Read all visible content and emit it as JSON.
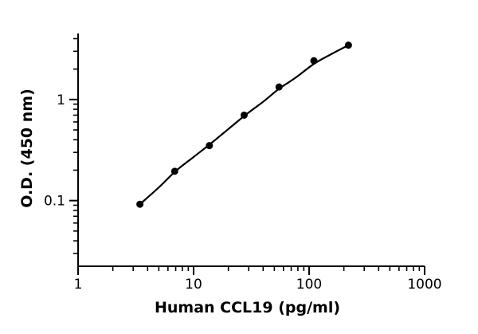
{
  "chart_data": {
    "type": "scatter",
    "title": "",
    "xlabel": "Human CCL19 (pg/ml)",
    "ylabel": "O.D. (450 nm)",
    "x_scale": "log",
    "y_scale": "log",
    "xlim": [
      1,
      1000
    ],
    "ylim": [
      0.025,
      4.5
    ],
    "x_ticks": [
      {
        "value": 1,
        "label": "1"
      },
      {
        "value": 10,
        "label": "10"
      },
      {
        "value": 100,
        "label": "100"
      },
      {
        "value": 1000,
        "label": "1000"
      }
    ],
    "y_ticks": [
      {
        "value": 0.1,
        "label": "0.1"
      },
      {
        "value": 1,
        "label": "1"
      }
    ],
    "grid": false,
    "legend": "none",
    "colors": {
      "points": "#000000",
      "curve": "#000000",
      "axes": "#000000"
    },
    "series": [
      {
        "x": [
          3.43,
          6.86,
          13.7,
          27.4,
          54.9,
          110,
          219
        ],
        "y": [
          0.092,
          0.195,
          0.35,
          0.7,
          1.33,
          2.42,
          3.45
        ]
      }
    ],
    "fit_curve": {
      "x": [
        3.43,
        5,
        7,
        10,
        14,
        20,
        28,
        40,
        55,
        75,
        110,
        150,
        219
      ],
      "y": [
        0.092,
        0.135,
        0.196,
        0.27,
        0.365,
        0.51,
        0.7,
        0.95,
        1.28,
        1.62,
        2.25,
        2.75,
        3.45
      ]
    }
  }
}
